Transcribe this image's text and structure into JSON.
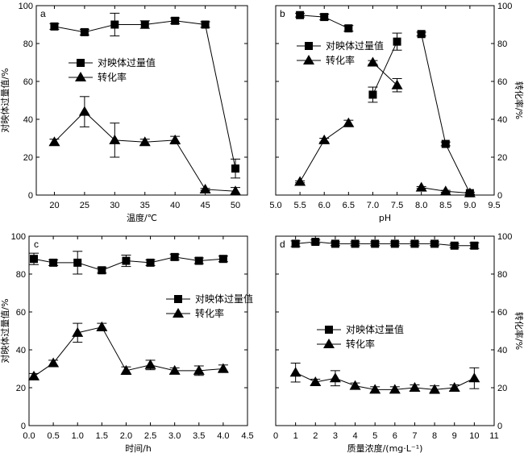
{
  "chart_data": [
    {
      "panel_label": "a",
      "type": "line",
      "xlabel": "温度/℃",
      "ylabel_left": "对映体过量值/%",
      "xlim": [
        17,
        52
      ],
      "ylim": [
        0,
        100
      ],
      "x_ticks": [
        20,
        25,
        30,
        35,
        40,
        45,
        50
      ],
      "y_ticks": [
        0,
        20,
        40,
        60,
        80,
        100
      ],
      "legend": [
        "对映体过量值",
        "转化率"
      ],
      "series": [
        {
          "name": "对映体过量值",
          "marker": "square",
          "axis": "left",
          "x": [
            20,
            25,
            30,
            35,
            40,
            45,
            50
          ],
          "y": [
            89,
            86,
            90,
            90,
            92,
            90,
            14
          ],
          "err": [
            1.5,
            1.5,
            6,
            2,
            1.5,
            1.5,
            5
          ]
        },
        {
          "name": "转化率",
          "marker": "triangle",
          "axis": "left",
          "x": [
            20,
            25,
            30,
            35,
            40,
            45,
            50
          ],
          "y": [
            28,
            44,
            29,
            28,
            29,
            3,
            2
          ],
          "err": [
            1.5,
            8,
            9,
            1.5,
            2,
            0.5,
            2
          ]
        }
      ]
    },
    {
      "panel_label": "b",
      "type": "line",
      "xlabel": "pH",
      "ylabel_right": "转化率/%",
      "xlim": [
        5.0,
        9.5
      ],
      "ylim": [
        0,
        100
      ],
      "x_ticks": [
        5.0,
        5.5,
        6.0,
        6.5,
        7.0,
        7.5,
        8.0,
        8.5,
        9.0,
        9.5
      ],
      "y_ticks": [
        0,
        20,
        40,
        60,
        80,
        100
      ],
      "legend": [
        "对映体过量值",
        "转化率"
      ],
      "series": [
        {
          "name": "对映体过量值",
          "marker": "square",
          "axis": "left",
          "x": [
            5.5,
            6.0,
            6.5,
            7.0,
            7.5,
            8.0,
            8.5,
            9.0
          ],
          "y": [
            95,
            94,
            88,
            53,
            81,
            85,
            27,
            1
          ],
          "segments": [
            [
              0,
              2
            ],
            [
              3,
              4
            ],
            [
              5,
              7
            ]
          ],
          "err": [
            1,
            1.5,
            1.5,
            4,
            4.5,
            1,
            1,
            0.5
          ]
        },
        {
          "name": "转化率",
          "marker": "triangle",
          "axis": "right",
          "x": [
            5.5,
            6.0,
            6.5,
            7.0,
            7.5,
            8.0,
            8.5,
            9.0
          ],
          "y": [
            7,
            29,
            38,
            70,
            58,
            4,
            2,
            1
          ],
          "segments": [
            [
              0,
              2
            ],
            [
              3,
              4
            ],
            [
              5,
              7
            ]
          ],
          "err": [
            0.5,
            1,
            1.5,
            1,
            3.5,
            0.5,
            0.5,
            0.5
          ]
        }
      ]
    },
    {
      "panel_label": "c",
      "type": "line",
      "xlabel": "时间/h",
      "ylabel_left": "对映体过量值/%",
      "xlim": [
        0,
        4.5
      ],
      "ylim": [
        0,
        100
      ],
      "x_ticks": [
        0.0,
        0.5,
        1.0,
        1.5,
        2.0,
        2.5,
        3.0,
        3.5,
        4.0,
        4.5
      ],
      "y_ticks": [
        0,
        20,
        40,
        60,
        80,
        100
      ],
      "legend": [
        "对映体过量值",
        "转化率"
      ],
      "series": [
        {
          "name": "对映体过量值",
          "marker": "square",
          "axis": "left",
          "x": [
            0.1,
            0.5,
            1.0,
            1.5,
            2.0,
            2.5,
            3.0,
            3.5,
            4.0
          ],
          "y": [
            88,
            86,
            86,
            82,
            87,
            86,
            89,
            87,
            88
          ],
          "err": [
            3,
            1.5,
            6,
            1.5,
            3,
            1.5,
            1.5,
            1.5,
            1.5
          ]
        },
        {
          "name": "转化率",
          "marker": "triangle",
          "axis": "left",
          "x": [
            0.1,
            0.5,
            1.0,
            1.5,
            2.0,
            2.5,
            3.0,
            3.5,
            4.0
          ],
          "y": [
            26,
            33,
            49,
            52,
            29,
            32,
            29,
            29,
            30
          ],
          "err": [
            1.5,
            1.5,
            5,
            2,
            2,
            2.5,
            1.5,
            2.5,
            2
          ]
        }
      ]
    },
    {
      "panel_label": "d",
      "type": "line",
      "xlabel": "质量浓度/(mg·L⁻¹)",
      "ylabel_right": "转化率/%",
      "xlim": [
        0,
        11
      ],
      "ylim": [
        0,
        100
      ],
      "x_ticks": [
        0,
        1,
        2,
        3,
        4,
        5,
        6,
        7,
        8,
        9,
        10,
        11
      ],
      "y_ticks": [
        0,
        20,
        40,
        60,
        80,
        100
      ],
      "legend": [
        "对映体过量值",
        "转化率"
      ],
      "series": [
        {
          "name": "对映体过量值",
          "marker": "square",
          "axis": "left",
          "x": [
            1,
            2,
            3,
            4,
            5,
            6,
            7,
            8,
            9,
            10
          ],
          "y": [
            96,
            97,
            96,
            96,
            96,
            96,
            96,
            96,
            95,
            95
          ],
          "err": [
            1.5,
            1,
            1,
            1,
            1,
            1,
            1,
            1,
            1,
            1.5
          ]
        },
        {
          "name": "转化率",
          "marker": "triangle",
          "axis": "right",
          "x": [
            1,
            2,
            3,
            4,
            5,
            6,
            7,
            8,
            9,
            10
          ],
          "y": [
            28,
            23,
            25,
            21,
            19,
            19,
            20,
            19,
            20,
            25
          ],
          "err": [
            5,
            1.5,
            4,
            1.5,
            1.5,
            1.5,
            1.5,
            2,
            1.5,
            5.5
          ]
        }
      ]
    }
  ]
}
